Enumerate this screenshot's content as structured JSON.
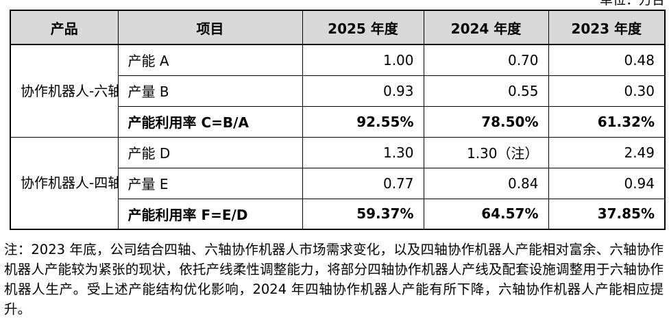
{
  "unit_note": "单位：万台",
  "table": {
    "headers": [
      "产品",
      "项目",
      "2025 年度",
      "2024 年度",
      "2023 年度"
    ],
    "groups": [
      {
        "product": "协作机器人-六轴",
        "rows": [
          {
            "item": "产能 A",
            "y2025": "1.00",
            "y2024": "0.70",
            "y2023": "0.48"
          },
          {
            "item": "产量 B",
            "y2025": "0.93",
            "y2024": "0.55",
            "y2023": "0.30"
          },
          {
            "item": "产能利用率 C=B/A",
            "y2025": "92.55%",
            "y2024": "78.50%",
            "y2023": "61.32%"
          }
        ]
      },
      {
        "product": "协作机器人-四轴",
        "rows": [
          {
            "item": "产能 D",
            "y2025": "1.30",
            "y2024": "1.30（注）",
            "y2023": "2.49"
          },
          {
            "item": "产量 E",
            "y2025": "0.77",
            "y2024": "0.84",
            "y2023": "0.94"
          },
          {
            "item": "产能利用率 F=E/D",
            "y2025": "59.37%",
            "y2024": "64.57%",
            "y2023": "37.85%"
          }
        ]
      }
    ]
  },
  "footnote": "注：2023 年底，公司结合四轴、六轴协作机器人市场需求变化，以及四轴协作机器人产能相对富余、六轴协作机器人产能较为紧张的现状，依托产线柔性调整能力，将部分四轴协作机器人产线及配套设施调整用于六轴协作机器人生产。受上述产能结构优化影响，2024 年四轴协作机器人产能有所下降，六轴协作机器人产能相应提升。"
}
